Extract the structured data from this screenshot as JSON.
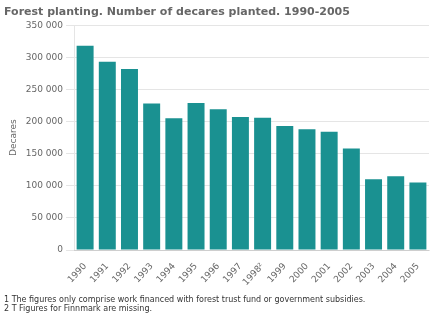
{
  "chart_data": {
    "type": "bar",
    "title": "Forest planting. Number of decares planted. 1990-2005",
    "ylabel": "Decares",
    "categories": [
      "1990",
      "1991",
      "1992",
      "1993",
      "1994",
      "1995",
      "1996",
      "1997",
      "1998²",
      "1999",
      "2000",
      "2001",
      "2002",
      "2003",
      "2004",
      "2005"
    ],
    "values": [
      318000,
      293000,
      282000,
      228000,
      205000,
      229000,
      219000,
      207000,
      206000,
      193000,
      188000,
      184000,
      158000,
      110000,
      115000,
      105000
    ],
    "color": "#1a9191",
    "ylim": [
      0,
      350000
    ],
    "yticks": [
      0,
      {
        "value": 50000,
        "label": "50 000"
      },
      {
        "value": 100000,
        "label": "100 000"
      },
      {
        "value": 150000,
        "label": "150 000"
      },
      {
        "value": 200000,
        "label": "200 000"
      },
      {
        "value": 250000,
        "label": "250 000"
      },
      {
        "value": 300000,
        "label": "300 000"
      },
      {
        "value": 350000,
        "label": "350 000"
      }
    ],
    "grid": true,
    "annotations": [
      "1 The figures only comprise work financed with forest trust fund or government subsidies.",
      "2 T Figures for Finnmark are missing."
    ]
  }
}
